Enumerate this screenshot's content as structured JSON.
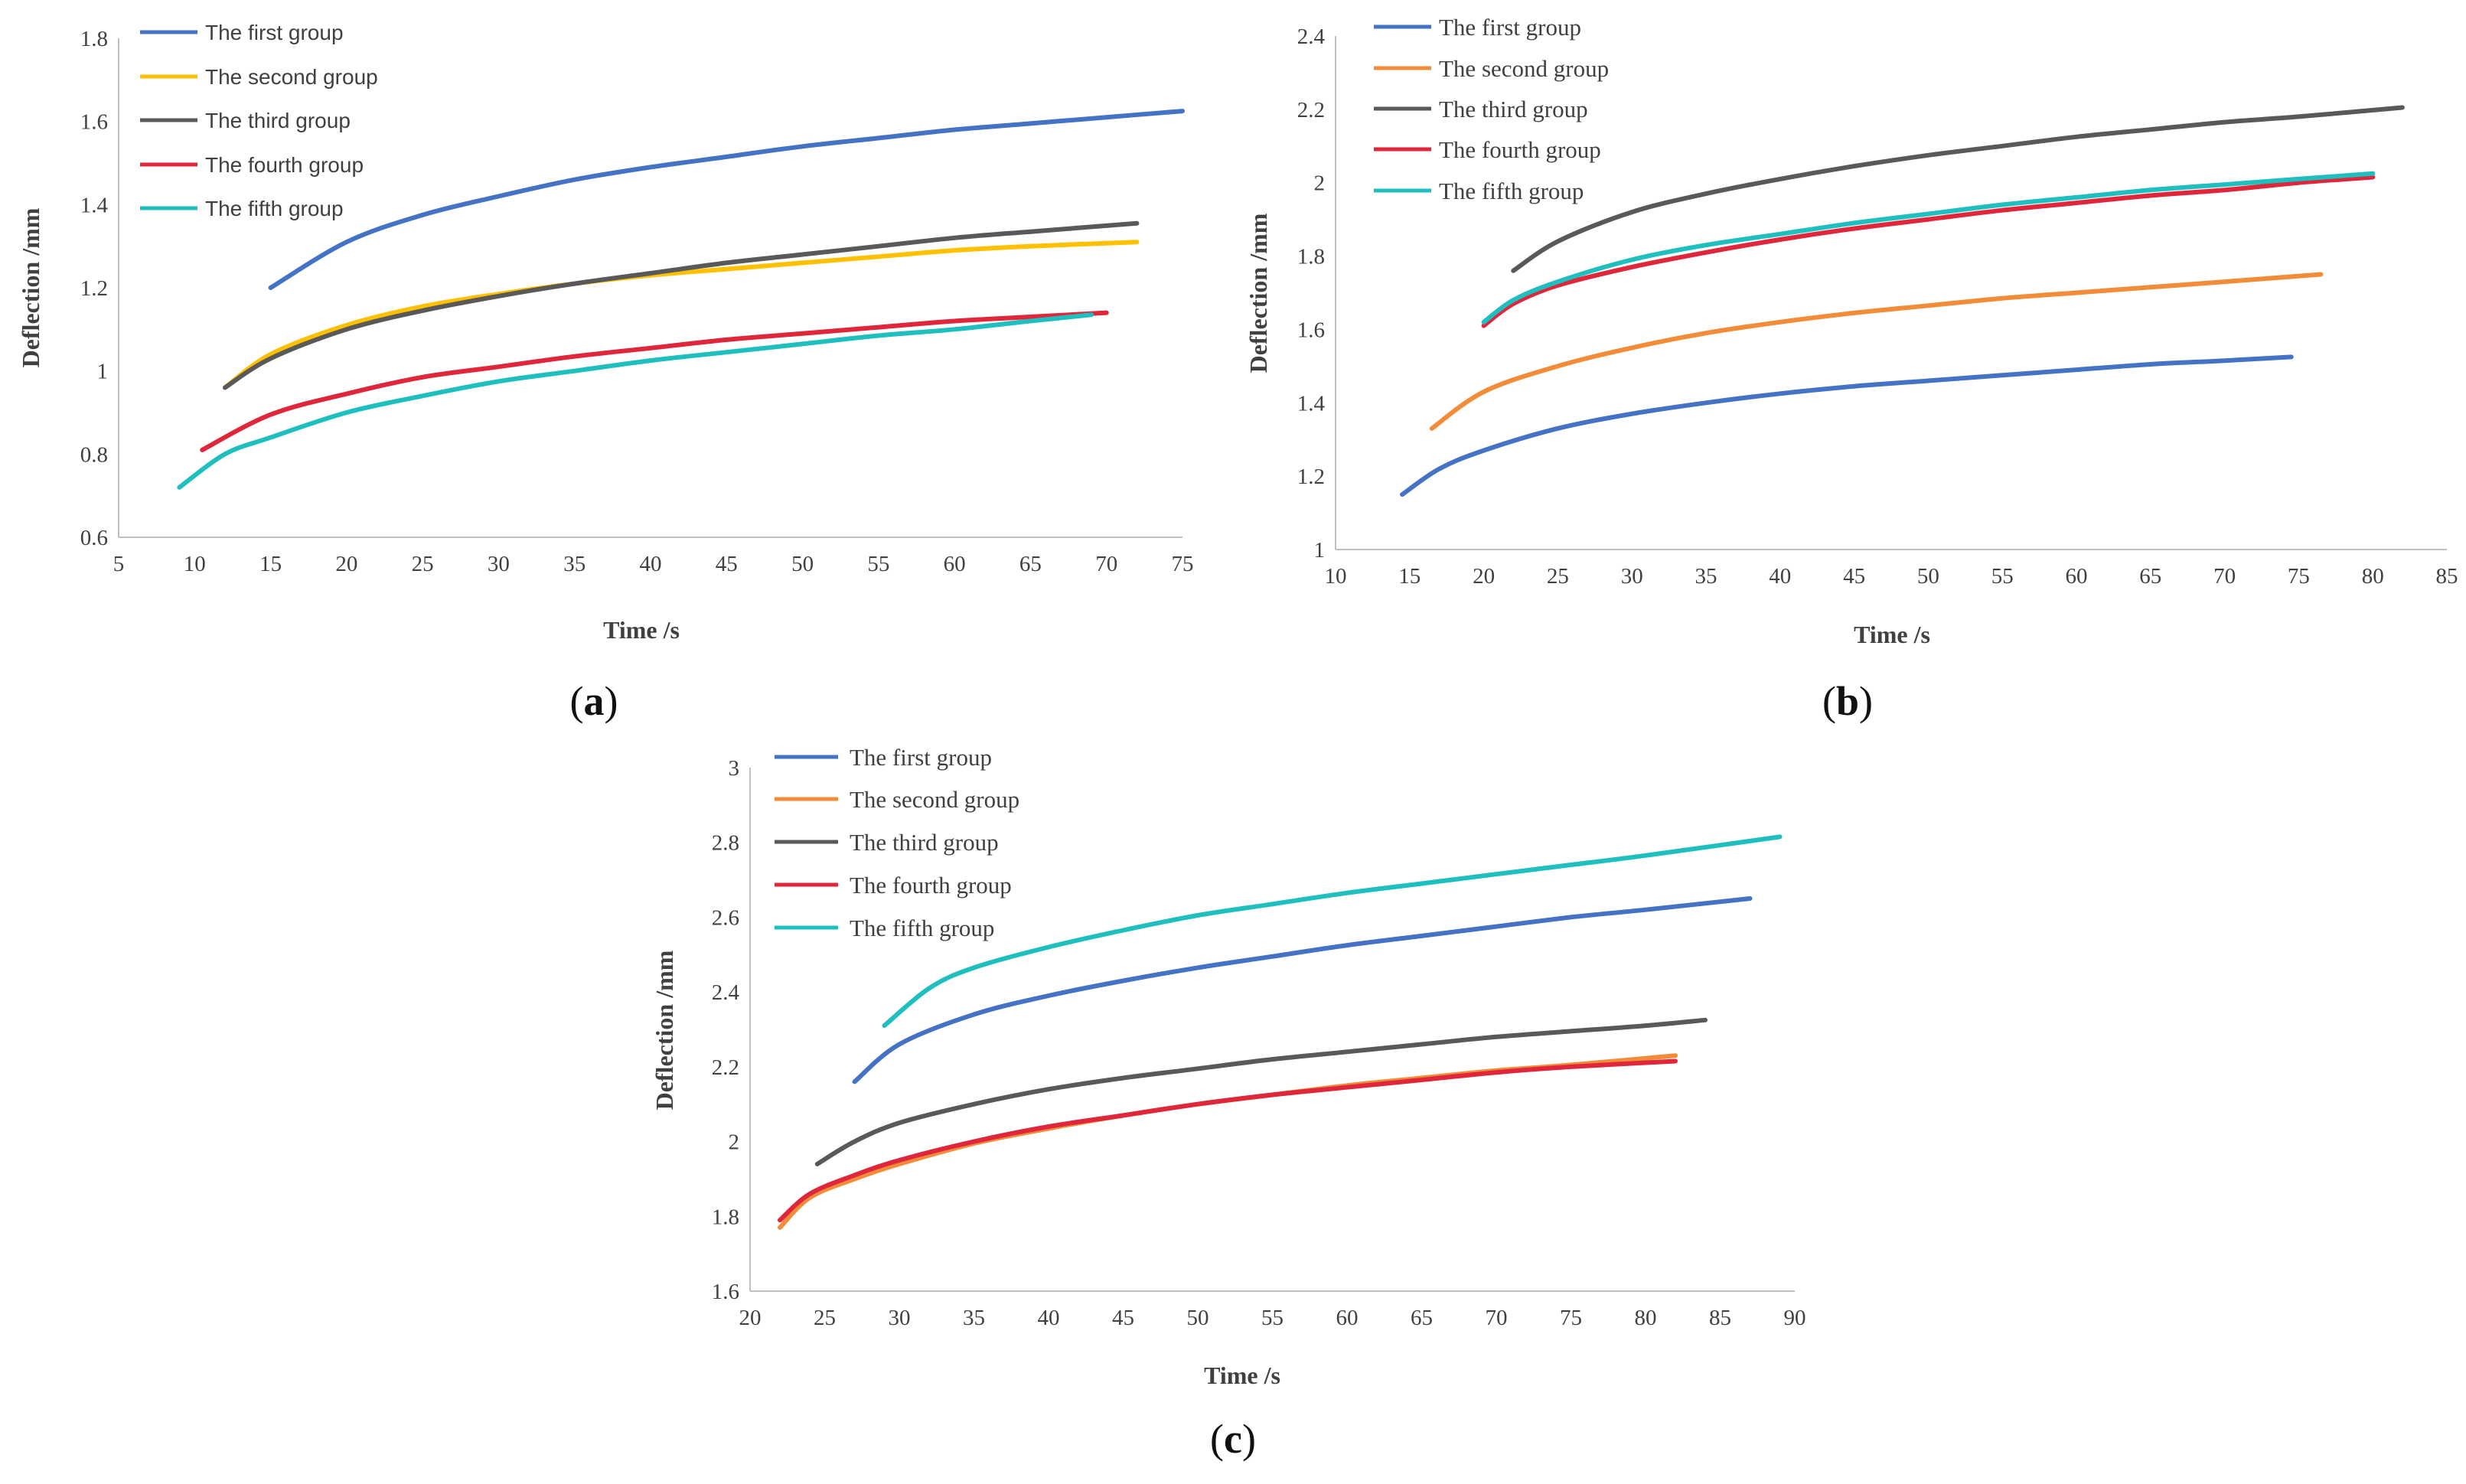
{
  "chart_data": [
    {
      "id": "a",
      "type": "line",
      "panel_label": "a",
      "xlabel": "Time /s",
      "ylabel": "Deflection /mm",
      "xlim": [
        5,
        75
      ],
      "ylim": [
        0.6,
        1.8
      ],
      "xticks": [
        5,
        10,
        15,
        20,
        25,
        30,
        35,
        40,
        45,
        50,
        55,
        60,
        65,
        70,
        75
      ],
      "yticks": [
        "0.6",
        "0.8",
        "1",
        "1.2",
        "1.4",
        "1.6",
        "1.8"
      ],
      "grid": false,
      "legend_position": "top-left",
      "series": [
        {
          "name": "The first group",
          "color": "#4472C4",
          "x": [
            15,
            20,
            25,
            30,
            35,
            40,
            45,
            50,
            55,
            60,
            65,
            70,
            75
          ],
          "y": [
            1.2,
            1.31,
            1.375,
            1.42,
            1.46,
            1.49,
            1.515,
            1.54,
            1.56,
            1.58,
            1.595,
            1.61,
            1.625
          ]
        },
        {
          "name": "The second group",
          "color": "#FFC000",
          "x": [
            12,
            15,
            20,
            25,
            30,
            35,
            40,
            45,
            50,
            55,
            60,
            65,
            72
          ],
          "y": [
            0.96,
            1.04,
            1.11,
            1.155,
            1.185,
            1.21,
            1.23,
            1.245,
            1.26,
            1.275,
            1.29,
            1.3,
            1.31
          ]
        },
        {
          "name": "The third group",
          "color": "#595959",
          "x": [
            12,
            15,
            20,
            25,
            30,
            35,
            40,
            45,
            50,
            55,
            60,
            65,
            72
          ],
          "y": [
            0.96,
            1.03,
            1.1,
            1.145,
            1.18,
            1.21,
            1.235,
            1.26,
            1.28,
            1.3,
            1.32,
            1.335,
            1.355
          ]
        },
        {
          "name": "The fourth group",
          "color": "#E0263A",
          "x": [
            10.5,
            15,
            20,
            25,
            30,
            35,
            40,
            45,
            50,
            55,
            60,
            65,
            70
          ],
          "y": [
            0.81,
            0.895,
            0.945,
            0.985,
            1.01,
            1.035,
            1.055,
            1.075,
            1.09,
            1.105,
            1.12,
            1.13,
            1.14
          ]
        },
        {
          "name": "The fifth group",
          "color": "#1FBFBF",
          "x": [
            9,
            12,
            15,
            20,
            25,
            30,
            35,
            40,
            45,
            50,
            55,
            60,
            65,
            69
          ],
          "y": [
            0.72,
            0.8,
            0.84,
            0.9,
            0.94,
            0.975,
            1.0,
            1.025,
            1.045,
            1.065,
            1.085,
            1.1,
            1.12,
            1.135
          ]
        }
      ]
    },
    {
      "id": "b",
      "type": "line",
      "panel_label": "b",
      "xlabel": "Time /s",
      "ylabel": "Deflection /mm",
      "xlim": [
        10,
        85
      ],
      "ylim": [
        1,
        2.4
      ],
      "xticks": [
        10,
        15,
        20,
        25,
        30,
        35,
        40,
        45,
        50,
        55,
        60,
        65,
        70,
        75,
        80,
        85
      ],
      "yticks": [
        "1",
        "1.2",
        "1.4",
        "1.6",
        "1.8",
        "2",
        "2.2",
        "2.4"
      ],
      "grid": false,
      "legend_position": "top-left",
      "series": [
        {
          "name": "The first group",
          "color": "#4472C4",
          "x": [
            14.5,
            17,
            20,
            25,
            30,
            35,
            40,
            45,
            50,
            55,
            60,
            65,
            70,
            74.5
          ],
          "y": [
            1.15,
            1.22,
            1.27,
            1.33,
            1.37,
            1.4,
            1.425,
            1.445,
            1.46,
            1.475,
            1.49,
            1.505,
            1.515,
            1.525
          ]
        },
        {
          "name": "The second group",
          "color": "#F28C38",
          "x": [
            16.5,
            20,
            25,
            30,
            35,
            40,
            45,
            50,
            55,
            60,
            65,
            70,
            76.5
          ],
          "y": [
            1.33,
            1.43,
            1.5,
            1.55,
            1.59,
            1.62,
            1.645,
            1.665,
            1.685,
            1.7,
            1.715,
            1.73,
            1.75
          ]
        },
        {
          "name": "The third group",
          "color": "#595959",
          "x": [
            22,
            25,
            30,
            35,
            40,
            45,
            50,
            55,
            60,
            65,
            70,
            75,
            82
          ],
          "y": [
            1.76,
            1.84,
            1.92,
            1.97,
            2.01,
            2.045,
            2.075,
            2.1,
            2.125,
            2.145,
            2.165,
            2.18,
            2.205
          ]
        },
        {
          "name": "The fourth group",
          "color": "#E0263A",
          "x": [
            20,
            22,
            25,
            30,
            35,
            40,
            45,
            50,
            55,
            60,
            65,
            70,
            75,
            80
          ],
          "y": [
            1.61,
            1.67,
            1.72,
            1.77,
            1.81,
            1.845,
            1.875,
            1.9,
            1.925,
            1.945,
            1.965,
            1.98,
            2.0,
            2.015
          ]
        },
        {
          "name": "The fifth group",
          "color": "#1FBFBF",
          "x": [
            20,
            22,
            25,
            30,
            35,
            40,
            45,
            50,
            55,
            60,
            65,
            70,
            75,
            80
          ],
          "y": [
            1.62,
            1.68,
            1.73,
            1.79,
            1.83,
            1.86,
            1.89,
            1.915,
            1.94,
            1.96,
            1.98,
            1.995,
            2.01,
            2.025
          ]
        }
      ]
    },
    {
      "id": "c",
      "type": "line",
      "panel_label": "c",
      "xlabel": "Time /s",
      "ylabel": "Deflection /mm",
      "xlim": [
        20,
        90
      ],
      "ylim": [
        1.6,
        3
      ],
      "xticks": [
        20,
        25,
        30,
        35,
        40,
        45,
        50,
        55,
        60,
        65,
        70,
        75,
        80,
        85,
        90
      ],
      "yticks": [
        "1.6",
        "1.8",
        "2",
        "2.2",
        "2.4",
        "2.6",
        "2.8",
        "3"
      ],
      "grid": false,
      "legend_position": "top-left",
      "series": [
        {
          "name": "The first group",
          "color": "#4472C4",
          "x": [
            27,
            30,
            35,
            40,
            45,
            50,
            55,
            60,
            65,
            70,
            75,
            80,
            87
          ],
          "y": [
            2.16,
            2.26,
            2.34,
            2.39,
            2.43,
            2.465,
            2.495,
            2.525,
            2.55,
            2.575,
            2.6,
            2.62,
            2.65
          ]
        },
        {
          "name": "The second group",
          "color": "#F28C38",
          "x": [
            22,
            24,
            27,
            30,
            35,
            40,
            45,
            50,
            55,
            60,
            65,
            70,
            75,
            82
          ],
          "y": [
            1.77,
            1.85,
            1.9,
            1.94,
            1.995,
            2.035,
            2.07,
            2.1,
            2.125,
            2.15,
            2.17,
            2.19,
            2.205,
            2.23
          ]
        },
        {
          "name": "The third group",
          "color": "#595959",
          "x": [
            24.5,
            27,
            30,
            35,
            40,
            45,
            50,
            55,
            60,
            65,
            70,
            75,
            80,
            84
          ],
          "y": [
            1.94,
            2.0,
            2.05,
            2.1,
            2.14,
            2.17,
            2.195,
            2.22,
            2.24,
            2.26,
            2.28,
            2.295,
            2.31,
            2.325
          ]
        },
        {
          "name": "The fourth group",
          "color": "#E0263A",
          "x": [
            22,
            24,
            27,
            30,
            35,
            40,
            45,
            50,
            55,
            60,
            65,
            70,
            75,
            82
          ],
          "y": [
            1.79,
            1.86,
            1.91,
            1.95,
            2.0,
            2.04,
            2.07,
            2.1,
            2.125,
            2.145,
            2.165,
            2.185,
            2.2,
            2.215
          ]
        },
        {
          "name": "The fifth group",
          "color": "#1FBFBF",
          "x": [
            29,
            32,
            35,
            40,
            45,
            50,
            55,
            60,
            65,
            70,
            75,
            80,
            89
          ],
          "y": [
            2.31,
            2.41,
            2.465,
            2.52,
            2.565,
            2.605,
            2.635,
            2.665,
            2.69,
            2.715,
            2.74,
            2.765,
            2.815
          ]
        }
      ]
    }
  ]
}
